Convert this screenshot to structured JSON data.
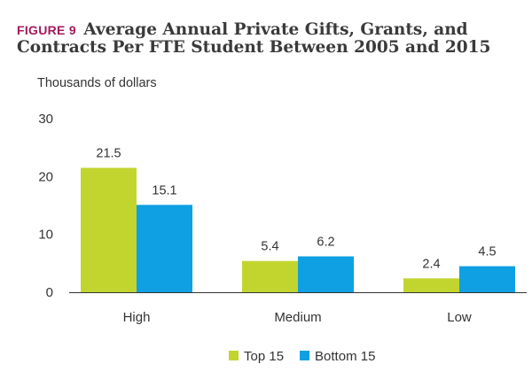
{
  "chart_data": {
    "type": "bar",
    "figure_label": "FIGURE 9",
    "title": "Average Annual Private Gifts, Grants, and Contracts Per FTE Student Between 2005 and 2015",
    "ylabel": "Thousands of dollars",
    "xlabel": "",
    "categories": [
      "High",
      "Medium",
      "Low"
    ],
    "series": [
      {
        "name": "Top 15",
        "values": [
          21.5,
          5.4,
          2.4
        ],
        "color": "#c2d52f"
      },
      {
        "name": "Bottom 15",
        "values": [
          15.1,
          6.2,
          4.5
        ],
        "color": "#0ea0e3"
      }
    ],
    "ylim": [
      0,
      30
    ],
    "yticks": [
      0,
      10,
      20,
      30
    ],
    "grid": false,
    "legend": "bottom-center"
  }
}
